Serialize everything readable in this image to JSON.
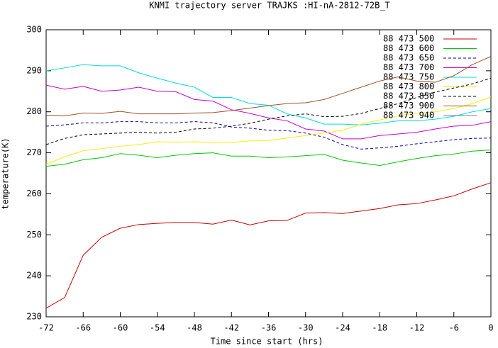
{
  "chart_data": {
    "type": "line",
    "title": "KNMI trajectory server TRAJKS :HI-nA-2812-72B_T",
    "xlabel": "Time since start (hrs)",
    "ylabel": "temperature(K)",
    "x": [
      -72,
      -69,
      -66,
      -63,
      -60,
      -57,
      -54,
      -51,
      -48,
      -45,
      -42,
      -39,
      -36,
      -33,
      -30,
      -27,
      -24,
      -21,
      -18,
      -15,
      -12,
      -9,
      -6,
      -3,
      0
    ],
    "xlim": [
      -72,
      0
    ],
    "xticks": [
      -72,
      -66,
      -60,
      -54,
      -48,
      -42,
      -36,
      -30,
      -24,
      -18,
      -12,
      -6,
      0
    ],
    "ylim": [
      230,
      300
    ],
    "yticks": [
      230,
      240,
      250,
      260,
      270,
      280,
      290,
      300
    ],
    "legend": "top-right",
    "series": [
      {
        "name": "88 473 500",
        "color": "#cc0000",
        "values": [
          232.1,
          234.7,
          245,
          249.4,
          251.6,
          252.5,
          252.8,
          253,
          253,
          252.6,
          253.6,
          252.4,
          253.4,
          253.5,
          255.3,
          255.4,
          255.2,
          255.8,
          256.4,
          257.3,
          257.6,
          258.5,
          259.5,
          261.2,
          262.7
        ]
      },
      {
        "name": "88 473 600",
        "color": "#00cc00",
        "values": [
          266.7,
          267.2,
          268.3,
          268.8,
          269.8,
          269.4,
          268.8,
          269.4,
          269.8,
          270,
          269.2,
          269.2,
          268.8,
          269,
          269.3,
          269.6,
          268.2,
          267.5,
          266.9,
          267.8,
          268.6,
          269.3,
          269.7,
          270.4,
          270.7
        ]
      },
      {
        "name": "88 473 650",
        "color": "#0000aa",
        "dash": "4,3",
        "values": [
          276.5,
          276.8,
          277.3,
          277.3,
          277.6,
          277.6,
          277.3,
          277.3,
          277.6,
          277.3,
          276.3,
          276,
          275.5,
          275.4,
          274.8,
          273.8,
          272,
          270.9,
          271.2,
          271.6,
          272.2,
          272.7,
          273.2,
          273.5,
          273.6
        ]
      },
      {
        "name": "88 473 700",
        "color": "#cc00cc",
        "values": [
          286.5,
          285.5,
          286.2,
          285,
          285.3,
          286,
          285,
          284.9,
          283,
          282.6,
          280.5,
          279.6,
          278.5,
          277.8,
          275.8,
          275.3,
          273.4,
          273.4,
          274.2,
          274.6,
          275,
          275.8,
          276.5,
          276.7,
          277.6
        ]
      },
      {
        "name": "88 473 750",
        "color": "#00dddd",
        "values": [
          290,
          290.7,
          291.5,
          291.2,
          291.2,
          289.5,
          288.2,
          287,
          286,
          283.5,
          283.5,
          282,
          281.6,
          279.5,
          278.5,
          277,
          277,
          276.8,
          277.2,
          277.8,
          277.8,
          278.2,
          278.9,
          280,
          280.8
        ]
      },
      {
        "name": "88 473 800",
        "color": "#ffee00",
        "values": [
          267.2,
          269,
          270.5,
          271,
          271.6,
          272,
          272.7,
          272.6,
          272.7,
          272.5,
          272.5,
          272.9,
          273,
          273.6,
          274.2,
          274.8,
          275.5,
          277,
          278,
          279,
          279.7,
          280,
          280.8,
          282,
          283.6
        ]
      },
      {
        "name": "88 473 850",
        "color": "#000000",
        "dash": "4,3",
        "values": [
          272,
          273.5,
          274.4,
          274.6,
          274.8,
          275,
          274.8,
          275,
          275.8,
          276,
          276.5,
          277.2,
          278.2,
          279,
          279.5,
          278.8,
          278.9,
          279.6,
          280.8,
          282,
          283.5,
          284.8,
          285.8,
          286.8,
          288.2
        ]
      },
      {
        "name": "88 473 900",
        "color": "#a0522d",
        "values": [
          279.2,
          279,
          279.7,
          279.6,
          280.1,
          279.5,
          279.5,
          279.5,
          279.7,
          279.8,
          280.3,
          280.9,
          281.5,
          282,
          282.2,
          283,
          284.5,
          286,
          287.5,
          288.5,
          287.5,
          287.2,
          288.8,
          291.5,
          293.5
        ]
      },
      {
        "name": "88 473 940",
        "color": "#808080",
        "values": [
          null,
          null,
          null,
          null,
          null,
          null,
          null,
          null,
          null,
          null,
          null,
          null,
          null,
          null,
          null,
          null,
          null,
          null,
          null,
          null,
          null,
          null,
          null,
          null,
          null
        ]
      }
    ]
  }
}
